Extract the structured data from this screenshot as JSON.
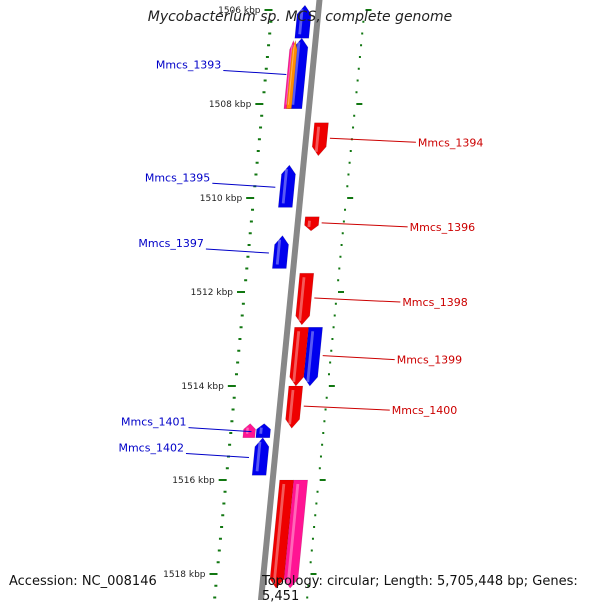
{
  "title": "Mycobacterium sp. MCS, complete genome",
  "accession": "Accession: NC_008146",
  "topology": "Topology: circular; Length: 5,705,448 bp; Genes: 5,451",
  "scale": {
    "start_kbp": 1506,
    "end_kbp": 1518,
    "tick_labels": [
      "1506 kbp",
      "1508 kbp",
      "1510 kbp",
      "1512 kbp",
      "1514 kbp",
      "1516 kbp",
      "1518 kbp"
    ]
  },
  "colors": {
    "forward_gene": "#0000ee",
    "reverse_gene": "#ee0000",
    "rna_gene": "#ff1493",
    "accent_gene": "#ff8c00",
    "backbone": "#888888",
    "ruler": "#117711",
    "forward_label": "#0000c8",
    "reverse_label": "#cc0000"
  },
  "genes": [
    {
      "label": "",
      "strand": "forward",
      "color": "#0000ee",
      "start_kbp": 1505.9,
      "end_kbp": 1506.6
    },
    {
      "label": "Mmcs_1393",
      "strand": "forward",
      "color": "#0000ee",
      "start_kbp": 1506.6,
      "end_kbp": 1508.1
    },
    {
      "label": "",
      "strand": "forward_outer",
      "color": "#ff1493",
      "start_kbp": 1506.65,
      "end_kbp": 1508.1
    },
    {
      "label": "",
      "strand": "forward_outer",
      "color": "#ff8c00",
      "start_kbp": 1506.65,
      "end_kbp": 1508.1
    },
    {
      "label": "Mmcs_1394",
      "strand": "reverse",
      "color": "#ee0000",
      "start_kbp": 1508.4,
      "end_kbp": 1509.1
    },
    {
      "label": "Mmcs_1395",
      "strand": "forward",
      "color": "#0000ee",
      "start_kbp": 1509.3,
      "end_kbp": 1510.2
    },
    {
      "label": "Mmcs_1396",
      "strand": "reverse",
      "color": "#ee0000",
      "start_kbp": 1510.4,
      "end_kbp": 1510.7
    },
    {
      "label": "Mmcs_1397",
      "strand": "forward",
      "color": "#0000ee",
      "start_kbp": 1510.8,
      "end_kbp": 1511.5
    },
    {
      "label": "Mmcs_1398",
      "strand": "reverse",
      "color": "#ee0000",
      "start_kbp": 1511.6,
      "end_kbp": 1512.7
    },
    {
      "label": "Mmcs_1399",
      "strand": "reverse_outer",
      "color": "#0000ee",
      "start_kbp": 1512.75,
      "end_kbp": 1514.0
    },
    {
      "label": "",
      "strand": "reverse",
      "color": "#ee0000",
      "start_kbp": 1512.75,
      "end_kbp": 1514.0
    },
    {
      "label": "Mmcs_1400",
      "strand": "reverse",
      "color": "#ee0000",
      "start_kbp": 1514.0,
      "end_kbp": 1514.9
    },
    {
      "label": "Mmcs_1401",
      "strand": "forward",
      "color": "#0000ee",
      "start_kbp": 1514.8,
      "end_kbp": 1515.1
    },
    {
      "label": "",
      "strand": "forward_outer",
      "color": "#ff1493",
      "start_kbp": 1514.8,
      "end_kbp": 1515.1
    },
    {
      "label": "Mmcs_1402",
      "strand": "forward",
      "color": "#0000ee",
      "start_kbp": 1515.1,
      "end_kbp": 1515.9
    },
    {
      "label": "",
      "strand": "reverse",
      "color": "#ee0000",
      "start_kbp": 1516.0,
      "end_kbp": 1518.3
    },
    {
      "label": "",
      "strand": "reverse_outer",
      "color": "#ff1493",
      "start_kbp": 1516.0,
      "end_kbp": 1518.3
    }
  ]
}
